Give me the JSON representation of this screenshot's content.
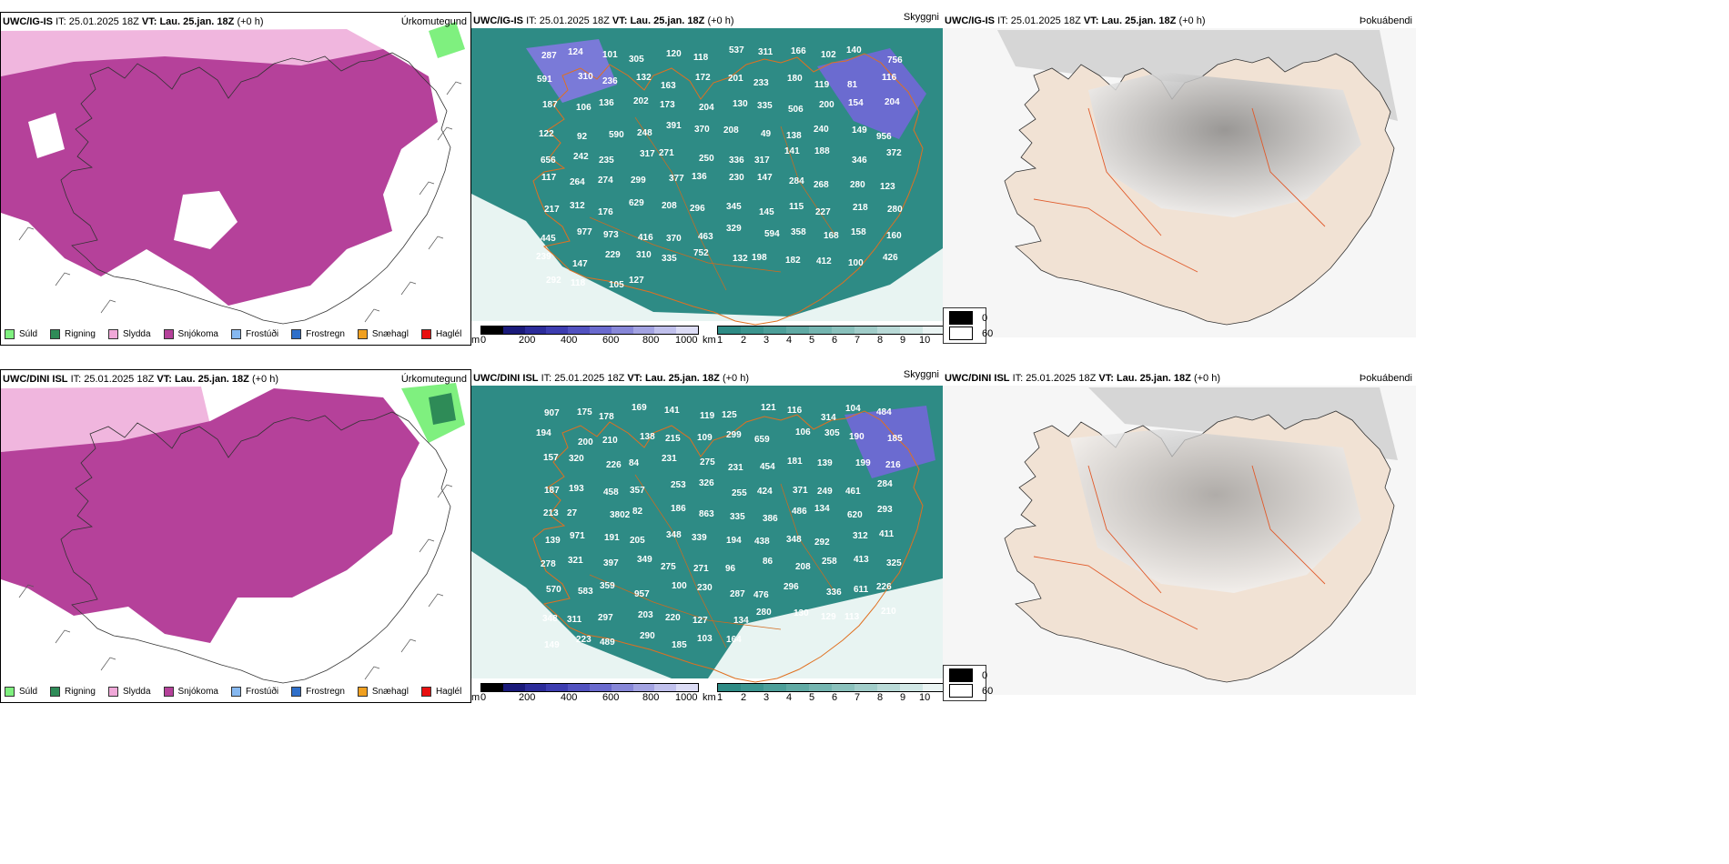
{
  "rows": [
    {
      "model": "UWC/IG-IS",
      "it_label": "IT:",
      "it": "25.01.2025 18Z",
      "vt_label": "VT:",
      "vt": "Lau. 25.jan. 18Z",
      "offset": "(+0 h)",
      "panel1_title": "Úrkomutegund",
      "panel2_title": "Skyggni",
      "panel3_title": "Þokuábendi",
      "values": [
        "287",
        "124",
        "101",
        "305",
        "120",
        "118",
        "537",
        "311",
        "166",
        "102",
        "140",
        "756",
        "591",
        "310",
        "236",
        "132",
        "163",
        "172",
        "201",
        "233",
        "180",
        "119",
        "81",
        "116",
        "187",
        "106",
        "136",
        "202",
        "173",
        "204",
        "130",
        "335",
        "506",
        "200",
        "154",
        "204",
        "122",
        "92",
        "590",
        "248",
        "391",
        "370",
        "208",
        "49",
        "138",
        "240",
        "149",
        "956",
        "656",
        "242",
        "235",
        "317",
        "271",
        "250",
        "336",
        "317",
        "141",
        "188",
        "346",
        "372",
        "117",
        "264",
        "274",
        "299",
        "377",
        "136",
        "230",
        "147",
        "284",
        "268",
        "280",
        "123",
        "217",
        "312",
        "176",
        "629",
        "208",
        "296",
        "345",
        "145",
        "115",
        "227",
        "218",
        "280",
        "445",
        "977",
        "973",
        "416",
        "370",
        "463",
        "329",
        "594",
        "358",
        "168",
        "158",
        "160",
        "239",
        "147",
        "229",
        "310",
        "335",
        "752",
        "132",
        "198",
        "182",
        "412",
        "100",
        "426",
        "292",
        "118",
        "105",
        "127"
      ]
    },
    {
      "model": "UWC/DINI ISL",
      "it_label": "IT:",
      "it": "25.01.2025 18Z",
      "vt_label": "VT:",
      "vt": "Lau. 25.jan. 18Z",
      "offset": "(+0 h)",
      "panel1_title": "Úrkomutegund",
      "panel2_title": "Skyggni",
      "panel3_title": "Þokuábendi",
      "values": [
        "907",
        "175",
        "178",
        "169",
        "141",
        "119",
        "125",
        "121",
        "116",
        "314",
        "104",
        "484",
        "194",
        "200",
        "210",
        "138",
        "215",
        "109",
        "299",
        "659",
        "106",
        "305",
        "190",
        "185",
        "157",
        "320",
        "226",
        "84",
        "231",
        "275",
        "231",
        "454",
        "181",
        "139",
        "199",
        "216",
        "187",
        "193",
        "458",
        "357",
        "253",
        "326",
        "255",
        "424",
        "371",
        "249",
        "461",
        "284",
        "213",
        "27",
        "3802",
        "82",
        "186",
        "863",
        "335",
        "386",
        "486",
        "134",
        "620",
        "293",
        "139",
        "971",
        "191",
        "205",
        "348",
        "339",
        "194",
        "438",
        "348",
        "292",
        "312",
        "411",
        "278",
        "321",
        "397",
        "349",
        "275",
        "271",
        "96",
        "86",
        "208",
        "258",
        "413",
        "325",
        "570",
        "583",
        "359",
        "957",
        "100",
        "230",
        "287",
        "476",
        "296",
        "336",
        "611",
        "226",
        "348",
        "311",
        "297",
        "203",
        "220",
        "127",
        "134",
        "280",
        "130",
        "129",
        "113",
        "210",
        "149",
        "223",
        "489",
        "290",
        "185",
        "103",
        "164"
      ]
    }
  ],
  "precip_legend": [
    "Súld",
    "Rigning",
    "Slydda",
    "Snjókoma",
    "Frostúði",
    "Frostregn",
    "Snæhagl",
    "Haglél"
  ],
  "precip_colors": [
    "#7ff07f",
    "#2e8b57",
    "#f0a8d8",
    "#b5419a",
    "#86b8f0",
    "#2f6fc9",
    "#f0a020",
    "#e81010"
  ],
  "ceiling_scale": {
    "unit": "m",
    "ticks": [
      "0",
      "200",
      "400",
      "600",
      "800",
      "1000"
    ]
  },
  "visibility_scale": {
    "unit": "km",
    "ticks": [
      "1",
      "2",
      "3",
      "4",
      "5",
      "6",
      "7",
      "8",
      "9",
      "10"
    ]
  },
  "fog_legend": [
    "0",
    "60"
  ]
}
